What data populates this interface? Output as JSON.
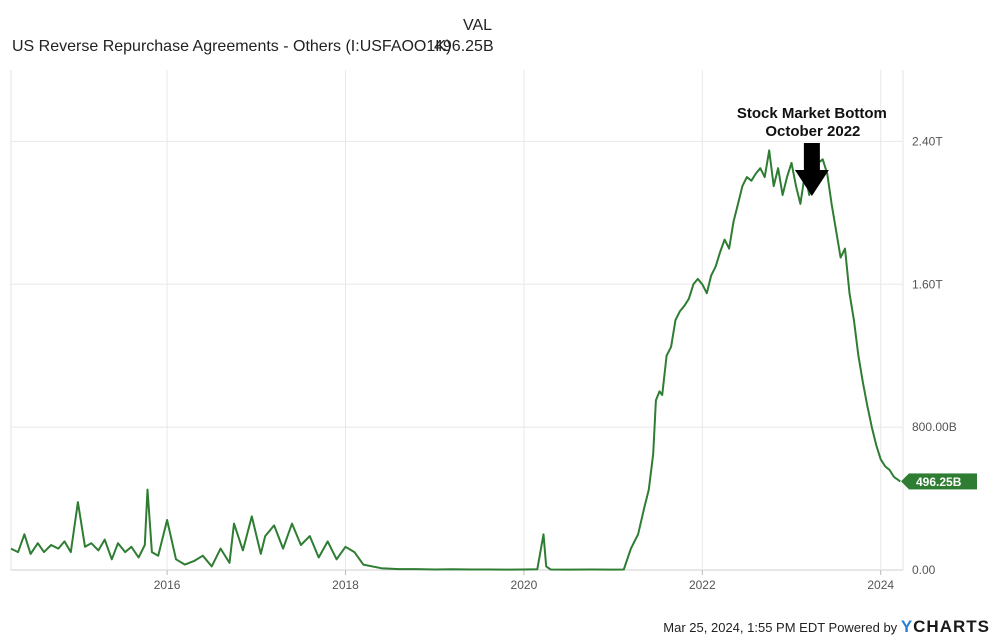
{
  "legend": {
    "header": "VAL",
    "series_label": "US Reverse Repurchase Agreements - Others (I:USFAOO1K)",
    "series_value": "496.25B"
  },
  "footer": {
    "timestamp": "Mar 25, 2024, 1:55 PM EDT Powered by",
    "brand_y": "Y",
    "brand_rest": "CHARTS"
  },
  "chart_data": {
    "type": "line",
    "annotation": {
      "line1": "Stock Market Bottom",
      "line2": "October 2022",
      "x": 2023.15
    },
    "xlim": [
      2014.25,
      2024.25
    ],
    "ylim": [
      0,
      2.8
    ],
    "x_ticks": [
      2016,
      2018,
      2020,
      2022,
      2024
    ],
    "x_tick_labels": [
      "2016",
      "2018",
      "2020",
      "2022",
      "2024"
    ],
    "y_ticks": [
      0,
      0.8,
      1.6,
      2.4
    ],
    "y_tick_labels": [
      "0.00",
      "800.00B",
      "1.60T",
      "2.40T"
    ],
    "last_value_label": "496.25B",
    "line_color": "#2e7d32",
    "grid": true,
    "series": [
      {
        "x": [
          2014.25,
          2014.33,
          2014.4,
          2014.47,
          2014.55,
          2014.62,
          2014.7,
          2014.78,
          2014.85,
          2014.92,
          2015.0,
          2015.08,
          2015.15,
          2015.23,
          2015.3,
          2015.38,
          2015.45,
          2015.53,
          2015.6,
          2015.68,
          2015.75,
          2015.78,
          2015.83,
          2015.9,
          2016.0,
          2016.1,
          2016.2,
          2016.3,
          2016.4,
          2016.5,
          2016.6,
          2016.7,
          2016.75,
          2016.85,
          2016.95,
          2017.05,
          2017.1,
          2017.2,
          2017.3,
          2017.4,
          2017.5,
          2017.6,
          2017.7,
          2017.8,
          2017.9,
          2018.0,
          2018.1,
          2018.2,
          2018.4,
          2018.6,
          2018.8,
          2019.0,
          2019.2,
          2019.4,
          2019.6,
          2019.8,
          2020.0,
          2020.15,
          2020.22,
          2020.25,
          2020.3,
          2020.5,
          2020.75,
          2021.0,
          2021.12,
          2021.2,
          2021.28,
          2021.35,
          2021.4,
          2021.45,
          2021.48,
          2021.52,
          2021.55,
          2021.6,
          2021.65,
          2021.7,
          2021.75,
          2021.8,
          2021.85,
          2021.9,
          2021.95,
          2022.0,
          2022.05,
          2022.1,
          2022.15,
          2022.2,
          2022.25,
          2022.3,
          2022.35,
          2022.4,
          2022.45,
          2022.5,
          2022.55,
          2022.6,
          2022.65,
          2022.7,
          2022.75,
          2022.8,
          2022.85,
          2022.9,
          2022.95,
          2023.0,
          2023.05,
          2023.1,
          2023.15,
          2023.2,
          2023.25,
          2023.3,
          2023.35,
          2023.4,
          2023.45,
          2023.5,
          2023.55,
          2023.6,
          2023.65,
          2023.7,
          2023.75,
          2023.8,
          2023.85,
          2023.9,
          2023.95,
          2024.0,
          2024.05,
          2024.1,
          2024.15,
          2024.22
        ],
        "y": [
          0.12,
          0.1,
          0.2,
          0.09,
          0.15,
          0.1,
          0.14,
          0.12,
          0.16,
          0.1,
          0.38,
          0.13,
          0.15,
          0.11,
          0.17,
          0.06,
          0.15,
          0.1,
          0.13,
          0.07,
          0.14,
          0.45,
          0.1,
          0.08,
          0.28,
          0.06,
          0.03,
          0.05,
          0.08,
          0.02,
          0.12,
          0.04,
          0.26,
          0.11,
          0.3,
          0.09,
          0.19,
          0.25,
          0.12,
          0.26,
          0.14,
          0.19,
          0.07,
          0.16,
          0.06,
          0.13,
          0.1,
          0.03,
          0.01,
          0.005,
          0.005,
          0.003,
          0.004,
          0.003,
          0.003,
          0.002,
          0.003,
          0.004,
          0.2,
          0.02,
          0.003,
          0.002,
          0.003,
          0.002,
          0.003,
          0.12,
          0.2,
          0.35,
          0.45,
          0.65,
          0.95,
          1.0,
          0.98,
          1.2,
          1.25,
          1.4,
          1.45,
          1.48,
          1.52,
          1.6,
          1.63,
          1.6,
          1.55,
          1.65,
          1.7,
          1.78,
          1.85,
          1.8,
          1.95,
          2.05,
          2.15,
          2.2,
          2.18,
          2.22,
          2.25,
          2.2,
          2.35,
          2.15,
          2.25,
          2.1,
          2.2,
          2.28,
          2.15,
          2.05,
          2.22,
          2.1,
          2.25,
          2.28,
          2.3,
          2.22,
          2.05,
          1.9,
          1.75,
          1.8,
          1.55,
          1.4,
          1.2,
          1.05,
          0.92,
          0.8,
          0.7,
          0.62,
          0.58,
          0.56,
          0.52,
          0.496
        ]
      }
    ]
  }
}
